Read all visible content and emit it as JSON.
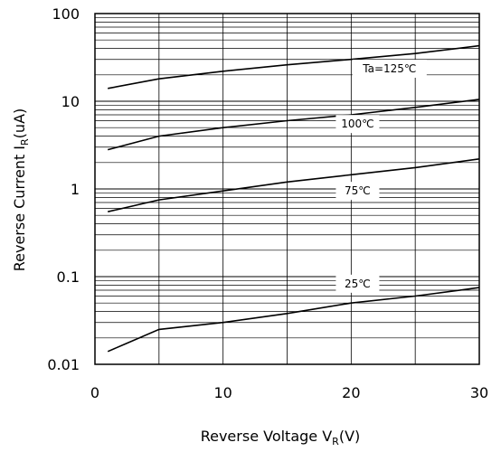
{
  "chart_data": {
    "type": "line",
    "title": "",
    "xlabel": {
      "main": "Reverse Voltage  V",
      "sub": "R",
      "unit": "(V)"
    },
    "ylabel": {
      "main": "Reverse Current  I",
      "sub": "R",
      "unit": "(uA)"
    },
    "xlim": [
      0,
      30
    ],
    "ylim": [
      0.01,
      100
    ],
    "yscale": "log",
    "grid": true,
    "xticks": [
      0,
      10,
      20,
      30
    ],
    "xtick_labels": [
      "0",
      "10",
      "20",
      "30"
    ],
    "yticks": [
      0.01,
      0.1,
      1,
      10,
      100
    ],
    "ytick_labels": [
      "0.01",
      "0.1",
      "1",
      "10",
      "100"
    ],
    "series": [
      {
        "name": "Ta=125℃",
        "x": [
          1,
          5,
          10,
          15,
          20,
          25,
          30
        ],
        "values": [
          14,
          18,
          22,
          26,
          30,
          35,
          43
        ]
      },
      {
        "name": "100℃",
        "x": [
          1,
          5,
          10,
          15,
          20,
          25,
          30
        ],
        "values": [
          2.8,
          4.0,
          5.0,
          6.0,
          7.0,
          8.5,
          10.5
        ]
      },
      {
        "name": "75℃",
        "x": [
          1,
          5,
          10,
          15,
          20,
          25,
          30
        ],
        "values": [
          0.55,
          0.75,
          0.95,
          1.2,
          1.45,
          1.75,
          2.2
        ]
      },
      {
        "name": "25℃",
        "x": [
          1,
          5,
          10,
          15,
          20,
          25,
          30
        ],
        "values": [
          0.014,
          0.025,
          0.03,
          0.038,
          0.05,
          0.06,
          0.075
        ]
      }
    ]
  }
}
